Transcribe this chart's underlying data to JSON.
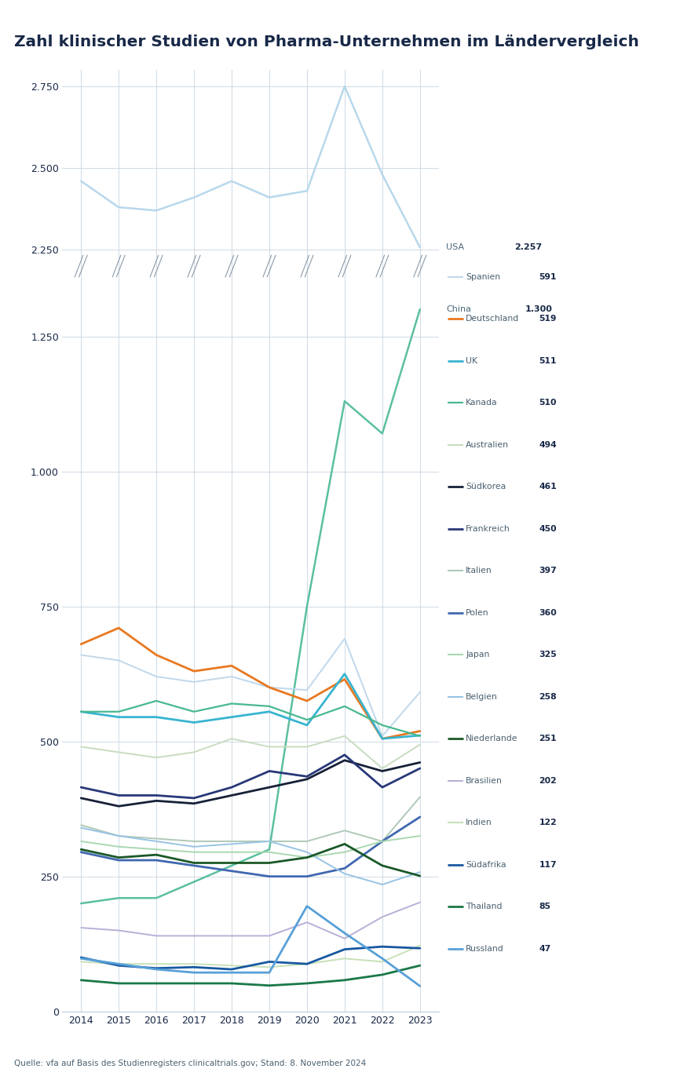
{
  "title": "Zahl klinischer Studien von Pharma-Unternehmen im Ländervergleich",
  "years": [
    2014,
    2015,
    2016,
    2017,
    2018,
    2019,
    2020,
    2021,
    2022,
    2023
  ],
  "source": "Quelle: vfa auf Basis des Studienregisters clinicaltrials.gov; Stand: 8. November 2024",
  "countries": {
    "USA": {
      "color": "#b8d8ec",
      "linewidth": 1.8,
      "value2023": 2257,
      "data": [
        2460,
        2380,
        2370,
        2410,
        2460,
        2410,
        2430,
        2750,
        2480,
        2257
      ]
    },
    "China": {
      "color": "#5bbfa0",
      "linewidth": 1.8,
      "value2023": 1300,
      "data": [
        200,
        210,
        210,
        240,
        270,
        300,
        750,
        1130,
        1070,
        1300
      ]
    },
    "Spanien": {
      "color": "#c0d8ec",
      "linewidth": 1.4,
      "value2023": 591,
      "data": [
        660,
        650,
        620,
        610,
        620,
        600,
        595,
        690,
        510,
        591
      ]
    },
    "Deutschland": {
      "color": "#e87820",
      "linewidth": 2.0,
      "value2023": 519,
      "data": [
        680,
        710,
        660,
        630,
        640,
        600,
        575,
        615,
        505,
        519
      ]
    },
    "UK": {
      "color": "#38b4d0",
      "linewidth": 2.0,
      "value2023": 511,
      "data": [
        555,
        545,
        545,
        535,
        545,
        555,
        530,
        625,
        505,
        511
      ]
    },
    "Kanada": {
      "color": "#48b890",
      "linewidth": 1.6,
      "value2023": 510,
      "data": [
        555,
        555,
        575,
        555,
        570,
        565,
        540,
        565,
        530,
        510
      ]
    },
    "Australien": {
      "color": "#c8dcc0",
      "linewidth": 1.4,
      "value2023": 494,
      "data": [
        490,
        480,
        470,
        480,
        505,
        490,
        490,
        510,
        450,
        494
      ]
    },
    "Südkorea": {
      "color": "#162038",
      "linewidth": 2.0,
      "value2023": 461,
      "data": [
        395,
        380,
        390,
        385,
        400,
        415,
        430,
        465,
        445,
        461
      ]
    },
    "Frankreich": {
      "color": "#283878",
      "linewidth": 2.0,
      "value2023": 450,
      "data": [
        415,
        400,
        400,
        395,
        415,
        445,
        435,
        475,
        415,
        450
      ]
    },
    "Italien": {
      "color": "#b0c8b8",
      "linewidth": 1.4,
      "value2023": 397,
      "data": [
        345,
        325,
        320,
        315,
        315,
        315,
        315,
        335,
        315,
        397
      ]
    },
    "Polen": {
      "color": "#4068b0",
      "linewidth": 2.0,
      "value2023": 360,
      "data": [
        295,
        280,
        280,
        270,
        260,
        250,
        250,
        265,
        315,
        360
      ]
    },
    "Japan": {
      "color": "#a8d8b0",
      "linewidth": 1.4,
      "value2023": 325,
      "data": [
        315,
        305,
        300,
        295,
        295,
        295,
        285,
        295,
        315,
        325
      ]
    },
    "Belgien": {
      "color": "#98c4e4",
      "linewidth": 1.4,
      "value2023": 258,
      "data": [
        340,
        325,
        315,
        305,
        310,
        315,
        295,
        255,
        235,
        258
      ]
    },
    "Niederlande": {
      "color": "#1a5828",
      "linewidth": 2.0,
      "value2023": 251,
      "data": [
        300,
        285,
        290,
        275,
        275,
        275,
        285,
        310,
        270,
        251
      ]
    },
    "Brasilien": {
      "color": "#b8b0d8",
      "linewidth": 1.4,
      "value2023": 202,
      "data": [
        155,
        150,
        140,
        140,
        140,
        140,
        165,
        135,
        175,
        202
      ]
    },
    "Indien": {
      "color": "#c8e0b8",
      "linewidth": 1.4,
      "value2023": 122,
      "data": [
        92,
        88,
        88,
        88,
        85,
        82,
        88,
        98,
        92,
        122
      ]
    },
    "Südafrika": {
      "color": "#1858a0",
      "linewidth": 2.0,
      "value2023": 117,
      "data": [
        100,
        85,
        80,
        82,
        78,
        92,
        88,
        115,
        120,
        117
      ]
    },
    "Thailand": {
      "color": "#1a7848",
      "linewidth": 2.0,
      "value2023": 85,
      "data": [
        58,
        52,
        52,
        52,
        52,
        48,
        52,
        58,
        68,
        85
      ]
    },
    "Russland": {
      "color": "#58a0d8",
      "linewidth": 2.0,
      "value2023": 47,
      "data": [
        98,
        88,
        78,
        72,
        72,
        72,
        195,
        145,
        98,
        47
      ]
    }
  },
  "upper_ylim": [
    2200,
    2800
  ],
  "lower_ylim": [
    0,
    1380
  ],
  "upper_yticks": [
    2250,
    2500,
    2750
  ],
  "lower_yticks": [
    0,
    250,
    500,
    750,
    1000,
    1250
  ],
  "background_color": "#ffffff",
  "grid_color": "#c8d4e0",
  "title_color": "#182848",
  "text_color": "#182848"
}
